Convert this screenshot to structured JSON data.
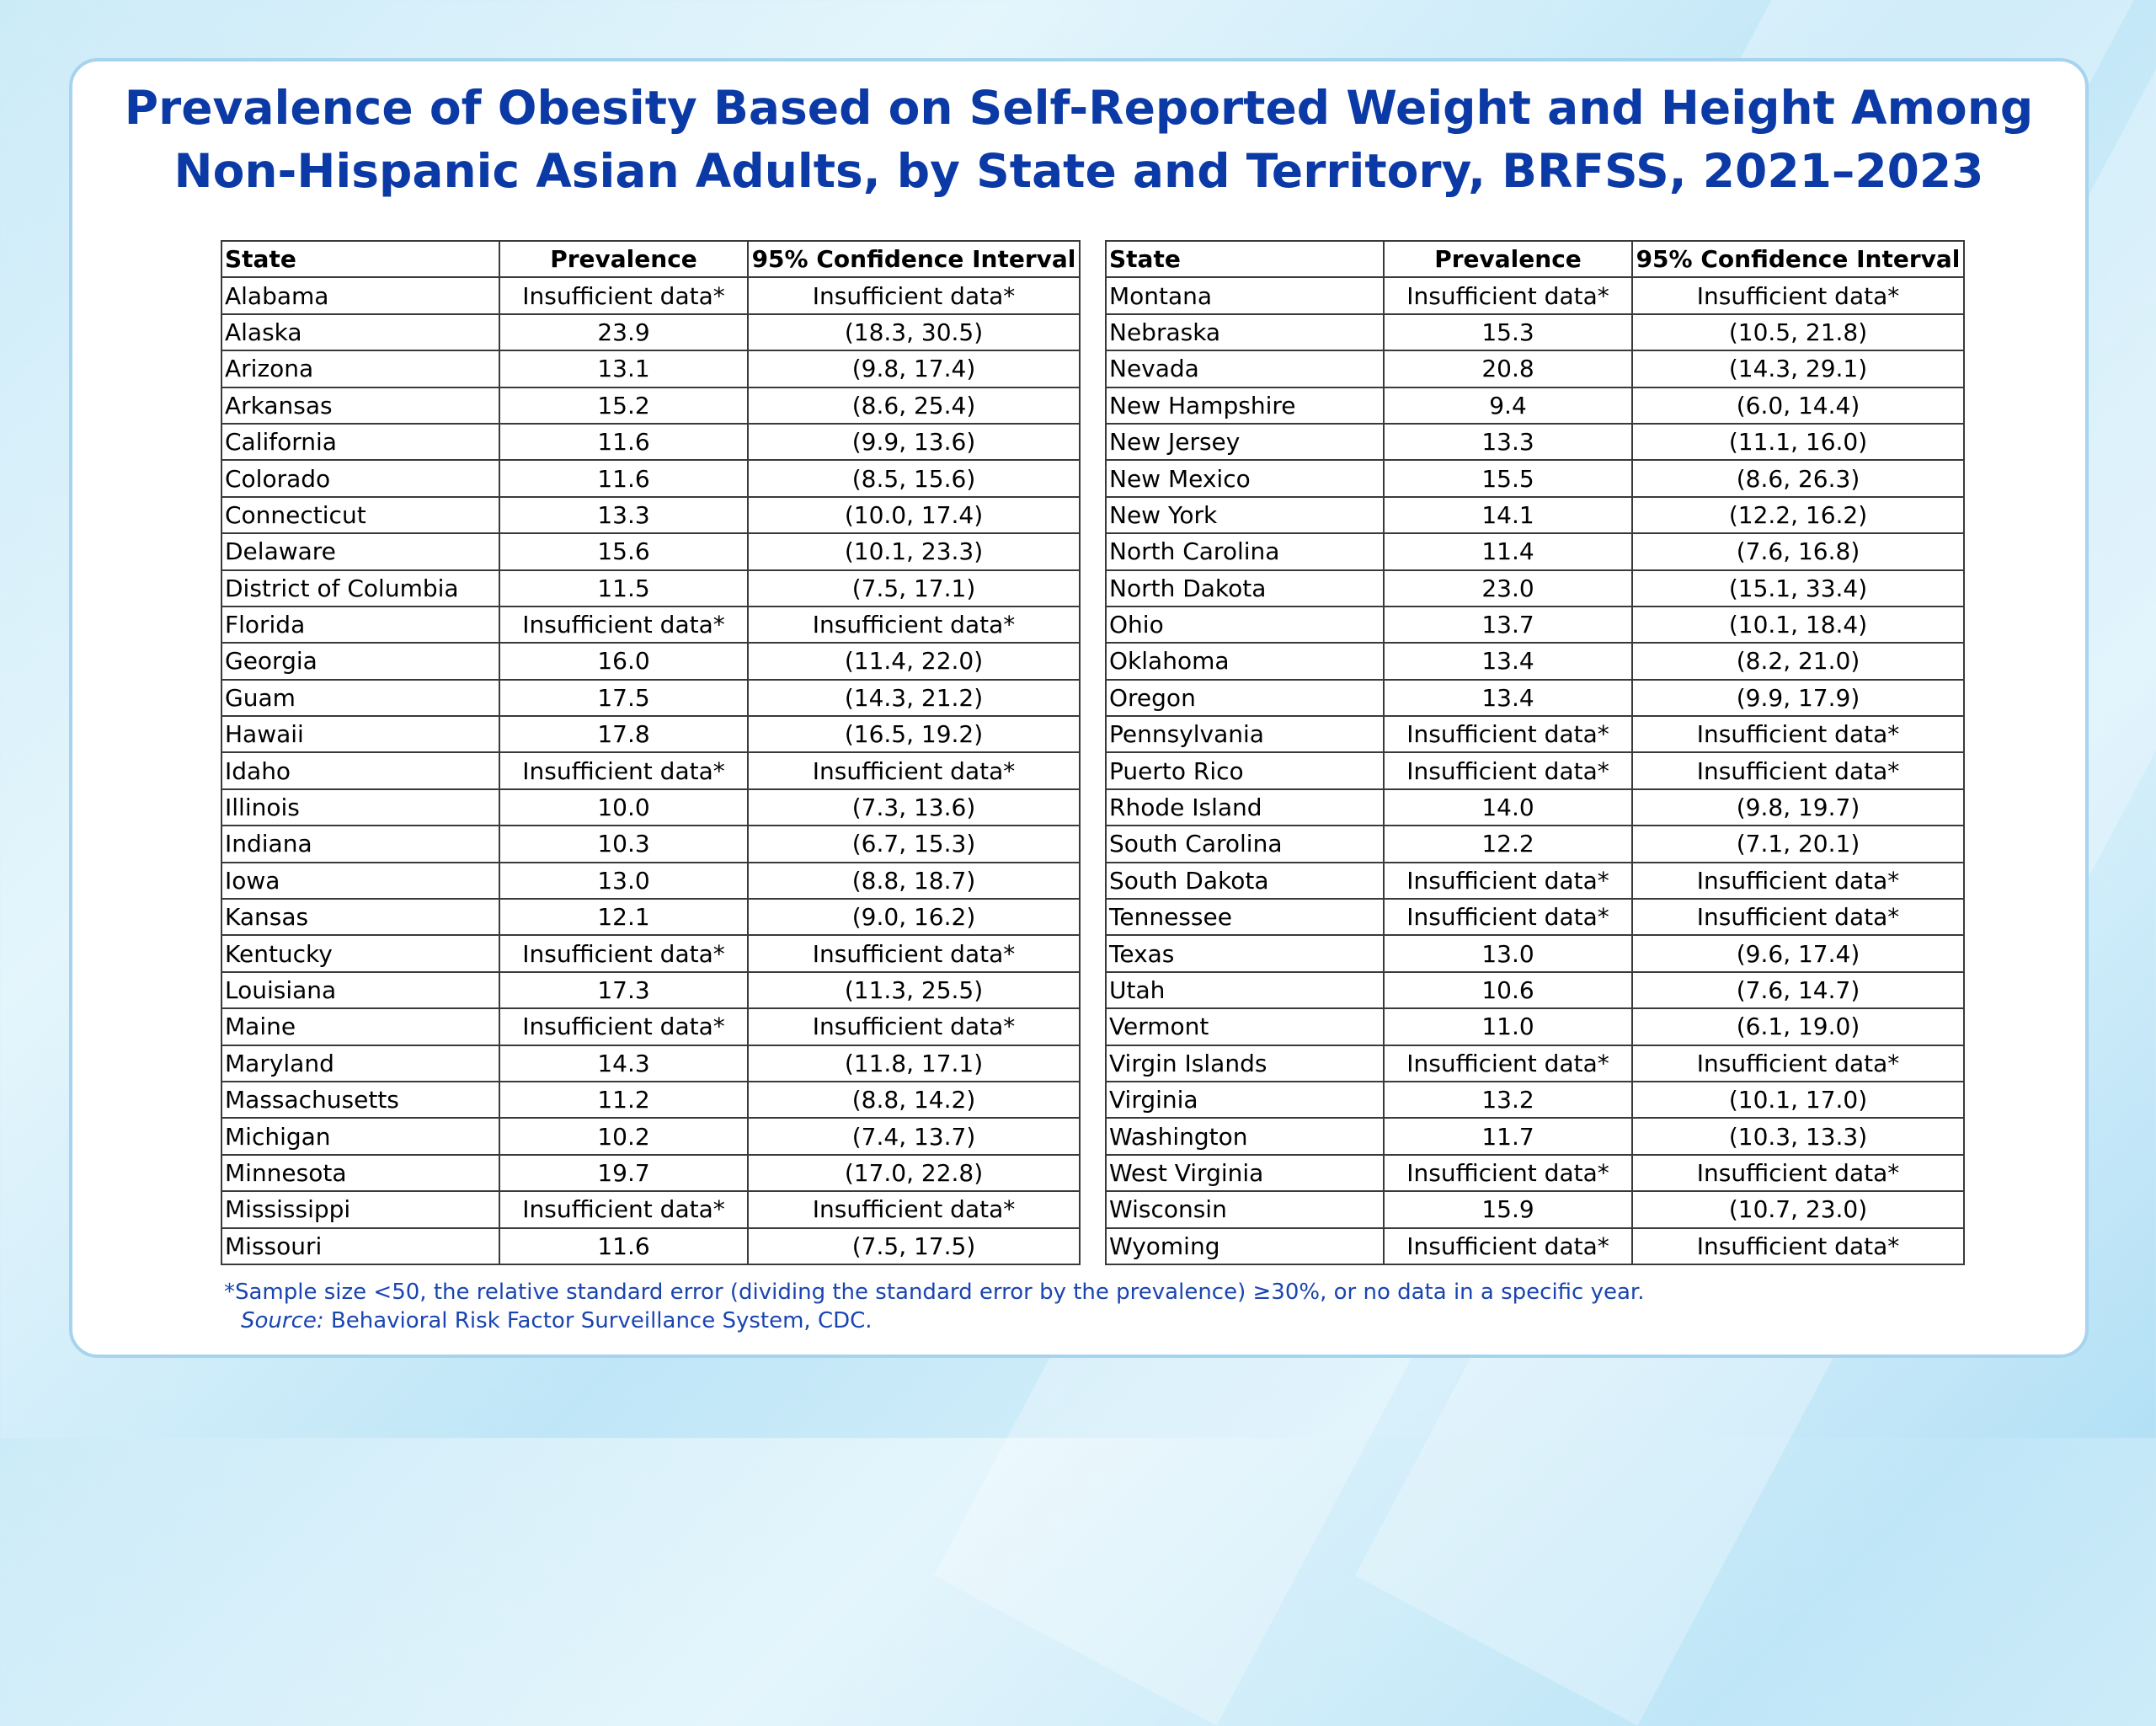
{
  "title": {
    "line1": "Prevalence of Obesity Based on Self-Reported Weight and Height Among",
    "line2": "Non-Hispanic Asian Adults, by State and Territory, BRFSS, 2021–2023"
  },
  "table_headers": {
    "state": "State",
    "prevalence": "Prevalence",
    "ci": "95% Confidence Interval"
  },
  "left_rows": [
    {
      "state": "Alabama",
      "prevalence": "Insufficient data*",
      "ci": "Insufficient data*"
    },
    {
      "state": "Alaska",
      "prevalence": "23.9",
      "ci": "(18.3, 30.5)"
    },
    {
      "state": "Arizona",
      "prevalence": "13.1",
      "ci": "(9.8, 17.4)"
    },
    {
      "state": "Arkansas",
      "prevalence": "15.2",
      "ci": "(8.6, 25.4)"
    },
    {
      "state": "California",
      "prevalence": "11.6",
      "ci": "(9.9, 13.6)"
    },
    {
      "state": "Colorado",
      "prevalence": "11.6",
      "ci": "(8.5, 15.6)"
    },
    {
      "state": "Connecticut",
      "prevalence": "13.3",
      "ci": "(10.0, 17.4)"
    },
    {
      "state": "Delaware",
      "prevalence": "15.6",
      "ci": "(10.1, 23.3)"
    },
    {
      "state": "District of Columbia",
      "prevalence": "11.5",
      "ci": "(7.5, 17.1)"
    },
    {
      "state": "Florida",
      "prevalence": "Insufficient data*",
      "ci": "Insufficient data*"
    },
    {
      "state": "Georgia",
      "prevalence": "16.0",
      "ci": "(11.4, 22.0)"
    },
    {
      "state": "Guam",
      "prevalence": "17.5",
      "ci": "(14.3, 21.2)"
    },
    {
      "state": "Hawaii",
      "prevalence": "17.8",
      "ci": "(16.5, 19.2)"
    },
    {
      "state": "Idaho",
      "prevalence": "Insufficient data*",
      "ci": "Insufficient data*"
    },
    {
      "state": "Illinois",
      "prevalence": "10.0",
      "ci": "(7.3, 13.6)"
    },
    {
      "state": "Indiana",
      "prevalence": "10.3",
      "ci": "(6.7, 15.3)"
    },
    {
      "state": "Iowa",
      "prevalence": "13.0",
      "ci": "(8.8, 18.7)"
    },
    {
      "state": "Kansas",
      "prevalence": "12.1",
      "ci": "(9.0, 16.2)"
    },
    {
      "state": "Kentucky",
      "prevalence": "Insufficient data*",
      "ci": "Insufficient data*"
    },
    {
      "state": "Louisiana",
      "prevalence": "17.3",
      "ci": "(11.3, 25.5)"
    },
    {
      "state": "Maine",
      "prevalence": "Insufficient data*",
      "ci": "Insufficient data*"
    },
    {
      "state": "Maryland",
      "prevalence": "14.3",
      "ci": "(11.8, 17.1)"
    },
    {
      "state": "Massachusetts",
      "prevalence": "11.2",
      "ci": "(8.8, 14.2)"
    },
    {
      "state": "Michigan",
      "prevalence": "10.2",
      "ci": "(7.4, 13.7)"
    },
    {
      "state": "Minnesota",
      "prevalence": "19.7",
      "ci": "(17.0, 22.8)"
    },
    {
      "state": "Mississippi",
      "prevalence": "Insufficient data*",
      "ci": "Insufficient data*"
    },
    {
      "state": "Missouri",
      "prevalence": "11.6",
      "ci": "(7.5, 17.5)"
    }
  ],
  "right_rows": [
    {
      "state": "Montana",
      "prevalence": "Insufficient data*",
      "ci": "Insufficient data*"
    },
    {
      "state": "Nebraska",
      "prevalence": "15.3",
      "ci": "(10.5, 21.8)"
    },
    {
      "state": "Nevada",
      "prevalence": "20.8",
      "ci": "(14.3, 29.1)"
    },
    {
      "state": "New Hampshire",
      "prevalence": "9.4",
      "ci": "(6.0, 14.4)"
    },
    {
      "state": "New Jersey",
      "prevalence": "13.3",
      "ci": "(11.1, 16.0)"
    },
    {
      "state": "New Mexico",
      "prevalence": "15.5",
      "ci": "(8.6, 26.3)"
    },
    {
      "state": "New York",
      "prevalence": "14.1",
      "ci": "(12.2, 16.2)"
    },
    {
      "state": "North Carolina",
      "prevalence": "11.4",
      "ci": "(7.6, 16.8)"
    },
    {
      "state": "North Dakota",
      "prevalence": "23.0",
      "ci": "(15.1, 33.4)"
    },
    {
      "state": "Ohio",
      "prevalence": "13.7",
      "ci": "(10.1, 18.4)"
    },
    {
      "state": "Oklahoma",
      "prevalence": "13.4",
      "ci": "(8.2, 21.0)"
    },
    {
      "state": "Oregon",
      "prevalence": "13.4",
      "ci": "(9.9, 17.9)"
    },
    {
      "state": "Pennsylvania",
      "prevalence": "Insufficient data*",
      "ci": "Insufficient data*"
    },
    {
      "state": "Puerto Rico",
      "prevalence": "Insufficient data*",
      "ci": "Insufficient data*"
    },
    {
      "state": "Rhode Island",
      "prevalence": "14.0",
      "ci": "(9.8, 19.7)"
    },
    {
      "state": "South Carolina",
      "prevalence": "12.2",
      "ci": "(7.1, 20.1)"
    },
    {
      "state": "South Dakota",
      "prevalence": "Insufficient data*",
      "ci": "Insufficient data*"
    },
    {
      "state": "Tennessee",
      "prevalence": "Insufficient data*",
      "ci": "Insufficient data*"
    },
    {
      "state": "Texas",
      "prevalence": "13.0",
      "ci": "(9.6, 17.4)"
    },
    {
      "state": "Utah",
      "prevalence": "10.6",
      "ci": "(7.6, 14.7)"
    },
    {
      "state": "Vermont",
      "prevalence": "11.0",
      "ci": "(6.1, 19.0)"
    },
    {
      "state": "Virgin Islands",
      "prevalence": "Insufficient data*",
      "ci": "Insufficient data*"
    },
    {
      "state": "Virginia",
      "prevalence": "13.2",
      "ci": "(10.1, 17.0)"
    },
    {
      "state": "Washington",
      "prevalence": "11.7",
      "ci": "(10.3, 13.3)"
    },
    {
      "state": "West Virginia",
      "prevalence": "Insufficient data*",
      "ci": "Insufficient data*"
    },
    {
      "state": "Wisconsin",
      "prevalence": "15.9",
      "ci": "(10.7, 23.0)"
    },
    {
      "state": "Wyoming",
      "prevalence": "Insufficient data*",
      "ci": "Insufficient data*"
    }
  ],
  "footnote": "*Sample size <50, the relative standard error (dividing the standard error by the prevalence) ≥30%, or no data in a specific year.",
  "source": {
    "label": "Source:",
    "text": " Behavioral Risk Factor Surveillance System, CDC."
  },
  "colors": {
    "title": "#0b3aa6",
    "footnote": "#1a45b0",
    "card_border": "#a6d3ee",
    "background": "#ccebf8"
  }
}
